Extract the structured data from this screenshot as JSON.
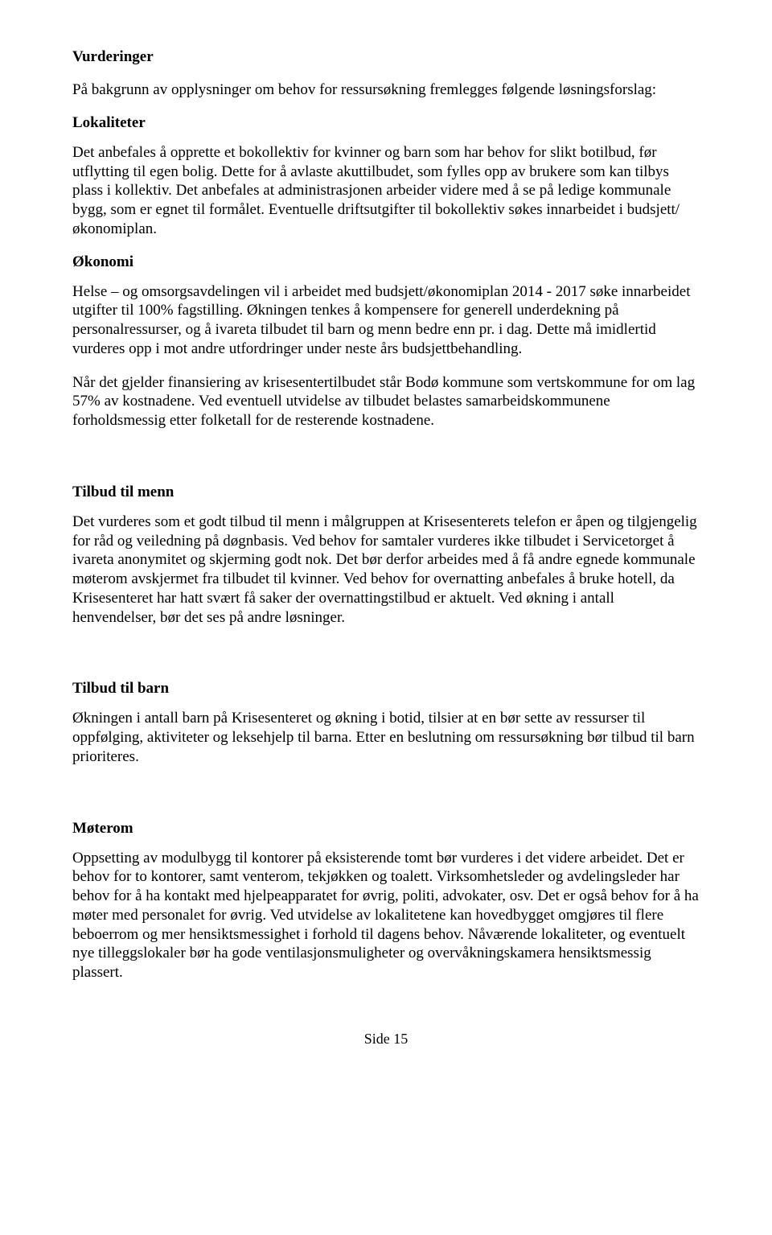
{
  "headings": {
    "vurderinger": "Vurderinger",
    "lokaliteter": "Lokaliteter",
    "okonomi": "Økonomi",
    "tilbud_menn": "Tilbud til menn",
    "tilbud_barn": "Tilbud til barn",
    "moterom": "Møterom"
  },
  "paragraphs": {
    "intro": "På bakgrunn av opplysninger om behov for ressursøkning fremlegges følgende løsningsforslag:",
    "lokaliteter_p1": "Det anbefales å opprette et bokollektiv for kvinner og barn som har behov for slikt botilbud, før utflytting til egen bolig. Dette for å avlaste akuttilbudet, som fylles opp av brukere som kan tilbys plass i kollektiv. Det anbefales at administrasjonen arbeider videre med å se på ledige kommunale bygg, som er egnet til formålet. Eventuelle driftsutgifter til bokollektiv søkes innarbeidet i budsjett/økonomiplan.",
    "okonomi_p1": "Helse – og omsorgsavdelingen vil i arbeidet med budsjett/økonomiplan 2014 - 2017 søke innarbeidet utgifter til 100% fagstilling. Økningen tenkes å kompensere for generell underdekning på personalressurser, og å ivareta tilbudet til barn og menn bedre enn pr. i dag. Dette må imidlertid vurderes opp i mot andre utfordringer under neste års budsjettbehandling.",
    "okonomi_p2": "Når det gjelder finansiering av krisesentertilbudet står Bodø kommune som vertskommune for om lag 57% av kostnadene. Ved eventuell utvidelse av tilbudet belastes samarbeidskommunene forholdsmessig etter folketall for de resterende kostnadene.",
    "menn_p1": "Det vurderes som et godt tilbud til menn i målgruppen at Krisesenterets telefon er åpen og tilgjengelig for råd og veiledning på døgnbasis. Ved behov for samtaler vurderes ikke tilbudet i Servicetorget å ivareta anonymitet og skjerming godt nok. Det bør  derfor arbeides med å få andre egnede kommunale møterom avskjermet fra tilbudet til kvinner. Ved behov for overnatting anbefales å bruke hotell, da Krisesenteret har hatt svært få saker der overnattingstilbud er aktuelt. Ved økning i antall henvendelser, bør det ses på andre løsninger.",
    "barn_p1": "Økningen i antall barn på Krisesenteret og økning i botid, tilsier at en bør sette av ressurser til oppfølging, aktiviteter og leksehjelp til barna. Etter en beslutning om ressursøkning bør tilbud til barn prioriteres.",
    "moterom_p1": "Oppsetting av modulbygg til kontorer på eksisterende tomt bør vurderes i det videre arbeidet. Det er behov for to kontorer, samt venterom, tekjøkken og toalett. Virksomhetsleder og avdelingsleder har behov for å ha kontakt med hjelpeapparatet for øvrig, politi, advokater, osv. Det er også behov for å ha møter med personalet for øvrig. Ved utvidelse av lokalitetene kan hovedbygget omgjøres til flere beboerrom og mer hensiktsmessighet i forhold til dagens behov. Nåværende lokaliteter, og eventuelt nye tilleggslokaler bør ha gode ventilasjonsmuligheter og overvåkningskamera hensiktsmessig plassert."
  },
  "footer": {
    "page_label": "Side 15"
  }
}
